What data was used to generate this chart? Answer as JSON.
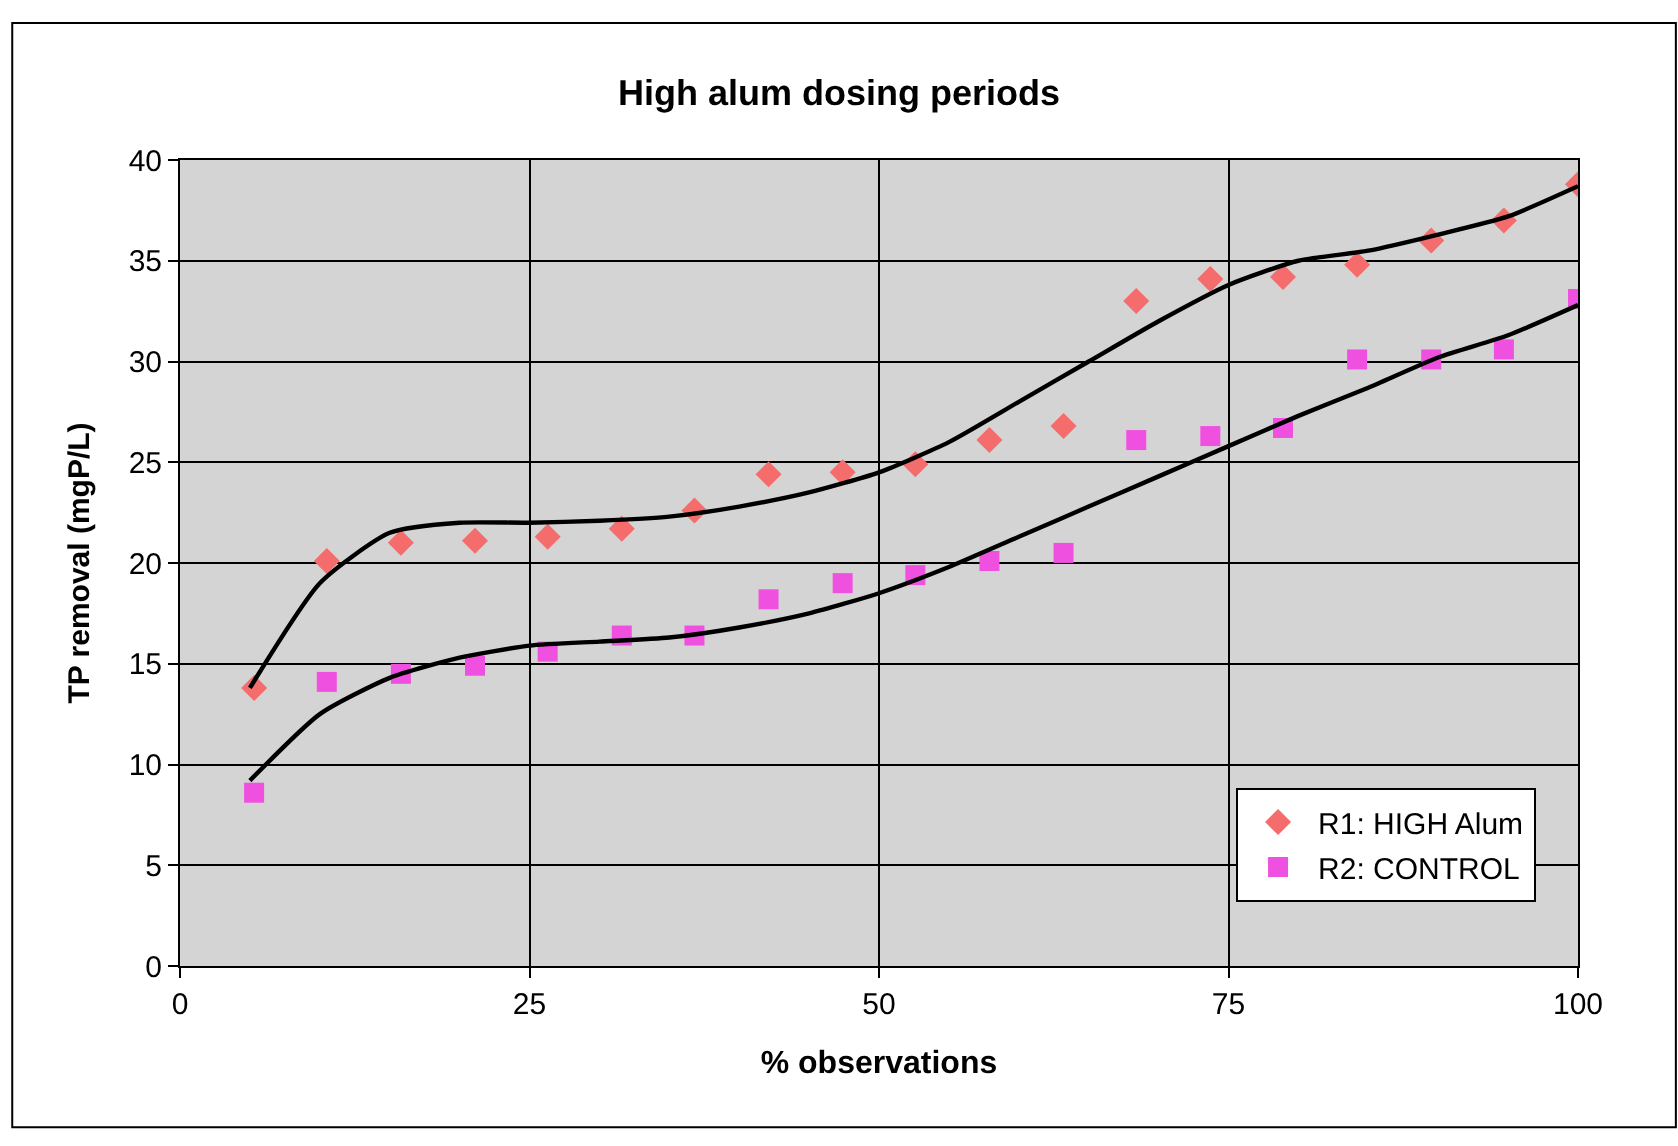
{
  "chart_data": {
    "type": "scatter",
    "title": "High alum dosing periods",
    "xlabel": "% observations",
    "ylabel": "TP removal (mgP/L)",
    "x": [
      5.3,
      10.5,
      15.8,
      21.1,
      26.3,
      31.6,
      36.8,
      42.1,
      47.4,
      52.6,
      57.9,
      63.2,
      68.4,
      73.7,
      78.9,
      84.2,
      89.5,
      94.7,
      100
    ],
    "series": [
      {
        "name": "R1: HIGH Alum",
        "color": "#f46c6c",
        "marker": "diamond",
        "values": [
          13.8,
          20.1,
          21.0,
          21.1,
          21.3,
          21.7,
          22.6,
          24.4,
          24.5,
          24.9,
          26.1,
          26.8,
          33.0,
          34.1,
          34.2,
          34.8,
          36.0,
          37.0,
          38.8
        ]
      },
      {
        "name": "R2: CONTROL",
        "color": "#f050e0",
        "marker": "square",
        "values": [
          8.6,
          14.1,
          14.5,
          14.9,
          15.6,
          16.4,
          16.4,
          18.2,
          19.0,
          19.4,
          20.1,
          20.5,
          26.1,
          26.3,
          26.7,
          30.1,
          30.1,
          30.6,
          33.1
        ]
      },
      {
        "type": "line",
        "color": "#000000",
        "marker": "none",
        "x": [
          5,
          10,
          15,
          20,
          25,
          30,
          35,
          40,
          45,
          50,
          55,
          60,
          65,
          70,
          75,
          80,
          85,
          90,
          95,
          100
        ],
        "values": [
          13.8,
          19,
          21.5,
          22,
          22,
          22.1,
          22.3,
          22.8,
          23.5,
          24.5,
          26,
          28,
          30,
          32,
          33.8,
          35,
          35.5,
          36.3,
          37.2,
          38.7
        ]
      },
      {
        "type": "line",
        "color": "#000000",
        "marker": "none",
        "x": [
          5,
          10,
          15,
          20,
          25,
          30,
          35,
          40,
          45,
          50,
          55,
          60,
          65,
          70,
          75,
          80,
          85,
          90,
          95,
          100
        ],
        "values": [
          9.2,
          12.5,
          14.3,
          15.3,
          15.9,
          16.1,
          16.3,
          16.8,
          17.5,
          18.5,
          19.8,
          21.3,
          22.8,
          24.3,
          25.8,
          27.3,
          28.7,
          30.2,
          31.3,
          32.8
        ]
      }
    ],
    "xlim": [
      0,
      100
    ],
    "xticks": [
      0,
      25,
      50,
      75,
      100
    ],
    "ylim": [
      0,
      40
    ],
    "yticks": [
      0,
      5,
      10,
      15,
      20,
      25,
      30,
      35,
      40
    ],
    "grid": true,
    "legend": "bottom right"
  }
}
